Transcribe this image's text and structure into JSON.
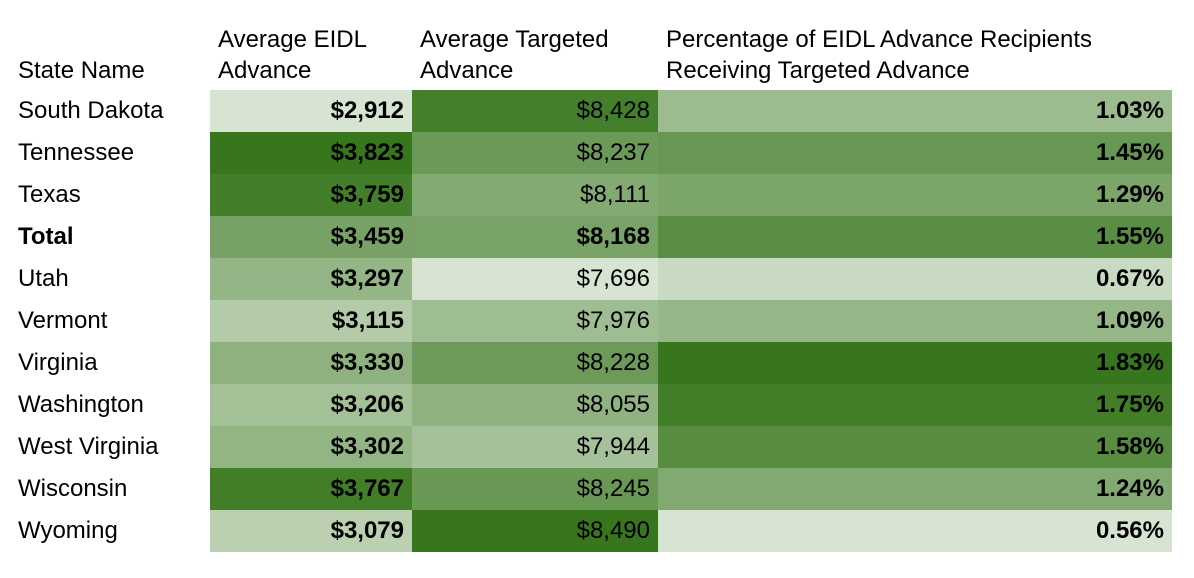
{
  "chart_data": {
    "type": "heatmap",
    "columns": [
      "State Name",
      "Average EIDL Advance",
      "Average Targeted Advance",
      "Percentage of EIDL Advance Recipients Receiving Targeted Advance"
    ],
    "rows": [
      {
        "state": "South Dakota",
        "eidl": "$2,912",
        "targeted": "$8,428",
        "pct": "1.03%",
        "eidl_value": 2912,
        "targeted_value": 8428,
        "pct_value": 1.03
      },
      {
        "state": "Tennessee",
        "eidl": "$3,823",
        "targeted": "$8,237",
        "pct": "1.45%",
        "eidl_value": 3823,
        "targeted_value": 8237,
        "pct_value": 1.45
      },
      {
        "state": "Texas",
        "eidl": "$3,759",
        "targeted": "$8,111",
        "pct": "1.29%",
        "eidl_value": 3759,
        "targeted_value": 8111,
        "pct_value": 1.29
      },
      {
        "state": "Total",
        "eidl": "$3,459",
        "targeted": "$8,168",
        "pct": "1.55%",
        "eidl_value": 3459,
        "targeted_value": 8168,
        "pct_value": 1.55
      },
      {
        "state": "Utah",
        "eidl": "$3,297",
        "targeted": "$7,696",
        "pct": "0.67%",
        "eidl_value": 3297,
        "targeted_value": 7696,
        "pct_value": 0.67
      },
      {
        "state": "Vermont",
        "eidl": "$3,115",
        "targeted": "$7,976",
        "pct": "1.09%",
        "eidl_value": 3115,
        "targeted_value": 7976,
        "pct_value": 1.09
      },
      {
        "state": "Virginia",
        "eidl": "$3,330",
        "targeted": "$8,228",
        "pct": "1.83%",
        "eidl_value": 3330,
        "targeted_value": 8228,
        "pct_value": 1.83
      },
      {
        "state": "Washington",
        "eidl": "$3,206",
        "targeted": "$8,055",
        "pct": "1.75%",
        "eidl_value": 3206,
        "targeted_value": 8055,
        "pct_value": 1.75
      },
      {
        "state": "West Virginia",
        "eidl": "$3,302",
        "targeted": "$7,944",
        "pct": "1.58%",
        "eidl_value": 3302,
        "targeted_value": 7944,
        "pct_value": 1.58
      },
      {
        "state": "Wisconsin",
        "eidl": "$3,767",
        "targeted": "$8,245",
        "pct": "1.24%",
        "eidl_value": 3767,
        "targeted_value": 8245,
        "pct_value": 1.24
      },
      {
        "state": "Wyoming",
        "eidl": "$3,079",
        "targeted": "$8,490",
        "pct": "0.56%",
        "eidl_value": 3079,
        "targeted_value": 8490,
        "pct_value": 0.56
      }
    ],
    "color_scale": {
      "low": "#ffffff",
      "high": "#38761d"
    }
  }
}
